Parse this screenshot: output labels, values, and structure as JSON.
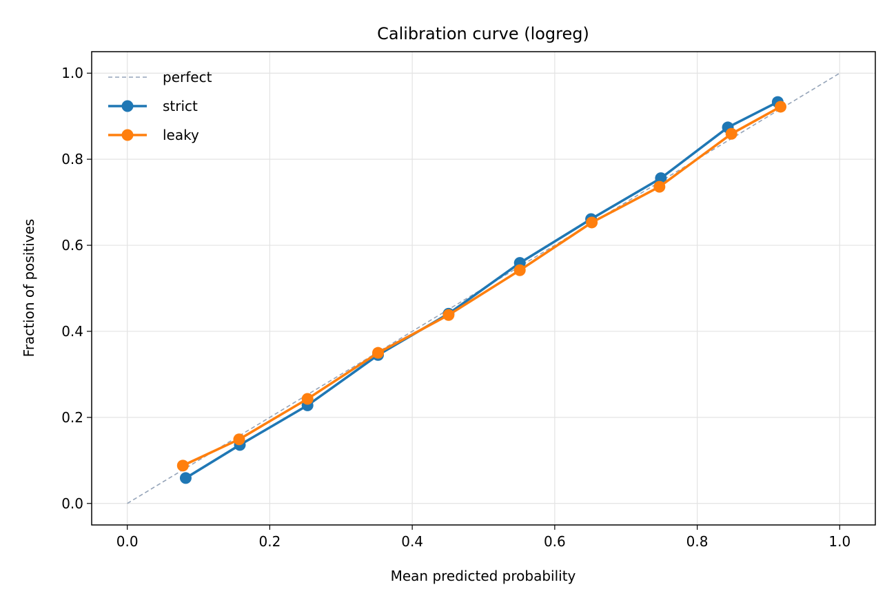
{
  "chart_data": {
    "type": "line",
    "title": "Calibration curve (logreg)",
    "xlabel": "Mean predicted probability",
    "ylabel": "Fraction of positives",
    "xlim": [
      -0.05,
      1.05
    ],
    "ylim": [
      -0.05,
      1.05
    ],
    "xticks": [
      "0.0",
      "0.2",
      "0.4",
      "0.6",
      "0.8",
      "1.0"
    ],
    "yticks": [
      "0.0",
      "0.2",
      "0.4",
      "0.6",
      "0.8",
      "1.0"
    ],
    "grid": true,
    "legend_position": "top-left",
    "series": [
      {
        "name": "perfect",
        "color": "#94a3b8",
        "style": "dashed",
        "marker": "none",
        "x": [
          0,
          1
        ],
        "y": [
          0,
          1
        ]
      },
      {
        "name": "strict",
        "color": "#1f77b4",
        "style": "solid",
        "marker": "circle",
        "x": [
          0.082,
          0.158,
          0.253,
          0.352,
          0.451,
          0.551,
          0.651,
          0.749,
          0.843,
          0.913
        ],
        "y": [
          0.059,
          0.136,
          0.228,
          0.345,
          0.441,
          0.559,
          0.661,
          0.756,
          0.874,
          0.933
        ]
      },
      {
        "name": "leaky",
        "color": "#ff7f0e",
        "style": "solid",
        "marker": "circle",
        "x": [
          0.078,
          0.157,
          0.253,
          0.352,
          0.451,
          0.551,
          0.652,
          0.747,
          0.848,
          0.917
        ],
        "y": [
          0.088,
          0.149,
          0.243,
          0.35,
          0.438,
          0.542,
          0.653,
          0.736,
          0.859,
          0.922
        ]
      }
    ]
  }
}
